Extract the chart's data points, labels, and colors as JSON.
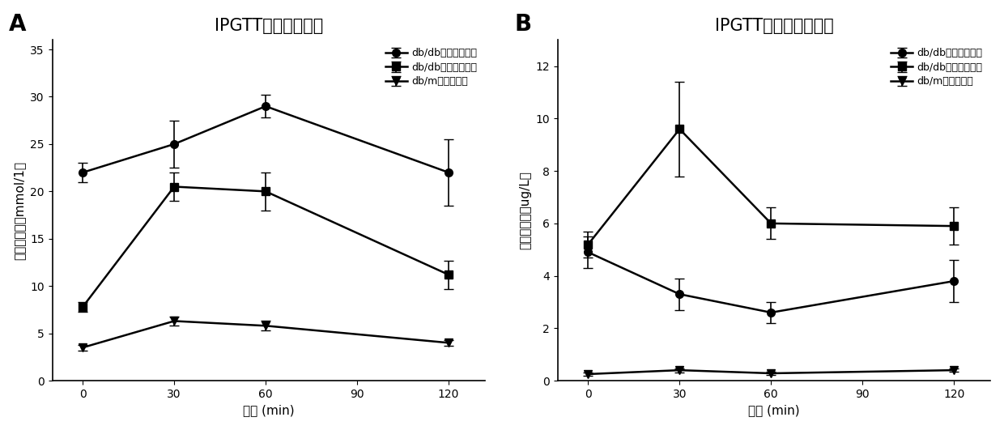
{
  "panel_A": {
    "title": "IPGTT试验血糖水平",
    "xlabel": "时间 (min)",
    "ylabel": "葡萄糖浓度（mmol/1）",
    "xticks": [
      0,
      30,
      60,
      90,
      120
    ],
    "ylim": [
      0,
      36
    ],
    "yticks": [
      0,
      5,
      10,
      15,
      20,
      25,
      30,
      35
    ],
    "series": [
      {
        "label_bold": "db/db",
        "label_normal": "糖尿病对照组",
        "x": [
          0,
          30,
          60,
          120
        ],
        "y": [
          22.0,
          25.0,
          29.0,
          22.0
        ],
        "yerr": [
          1.0,
          2.5,
          1.2,
          3.5
        ],
        "marker": "o"
      },
      {
        "label_bold": "db/db",
        "label_normal": "大黄酸治疗组",
        "x": [
          0,
          30,
          60,
          120
        ],
        "y": [
          7.8,
          20.5,
          20.0,
          11.2
        ],
        "yerr": [
          0.5,
          1.5,
          2.0,
          1.5
        ],
        "marker": "s"
      },
      {
        "label_bold": "db/m",
        "label_normal": "正常对照组",
        "x": [
          0,
          30,
          60,
          120
        ],
        "y": [
          3.5,
          6.3,
          5.8,
          4.0
        ],
        "yerr": [
          0.3,
          0.5,
          0.5,
          0.3
        ],
        "marker": "v"
      }
    ]
  },
  "panel_B": {
    "title": "IPGTT试验胰岛素水平",
    "xlabel": "时间 (min)",
    "ylabel": "胰岛素浓度（ug/L）",
    "xticks": [
      0,
      30,
      60,
      90,
      120
    ],
    "ylim": [
      0,
      13
    ],
    "yticks": [
      0,
      2,
      4,
      6,
      8,
      10,
      12
    ],
    "series": [
      {
        "label_bold": "db/db",
        "label_normal": "糖尿病对照组",
        "x": [
          0,
          30,
          60,
          120
        ],
        "y": [
          4.9,
          3.3,
          2.6,
          3.8
        ],
        "yerr": [
          0.6,
          0.6,
          0.4,
          0.8
        ],
        "marker": "o"
      },
      {
        "label_bold": "db/db",
        "label_normal": "大黄酸治疗组",
        "x": [
          0,
          30,
          60,
          120
        ],
        "y": [
          5.2,
          9.6,
          6.0,
          5.9
        ],
        "yerr": [
          0.5,
          1.8,
          0.6,
          0.7
        ],
        "marker": "s"
      },
      {
        "label_bold": "db/m",
        "label_normal": "正常对照组",
        "x": [
          0,
          30,
          60,
          120
        ],
        "y": [
          0.25,
          0.4,
          0.28,
          0.4
        ],
        "yerr": [
          0.05,
          0.08,
          0.05,
          0.05
        ],
        "marker": "v"
      }
    ]
  },
  "color": "#000000",
  "background": "#ffffff",
  "linewidth": 1.8,
  "markersize": 7,
  "capsize": 4,
  "title_fontsize": 15,
  "label_fontsize": 11,
  "tick_fontsize": 10,
  "legend_fontsize": 9
}
